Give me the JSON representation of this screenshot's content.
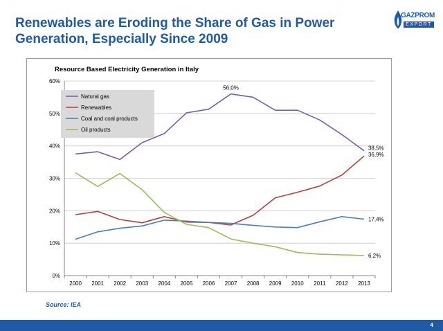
{
  "slide": {
    "title": "Renewables are Eroding the Share of Gas in Power Generation, Especially Since 2009",
    "source": "Source: IEA",
    "page_number": "4",
    "logo_brand": "GAZPROM",
    "logo_sub": "EXPORT"
  },
  "colors": {
    "title": "#1f5aa6",
    "natural_gas": "#7b5ea7",
    "renewables": "#b8403a",
    "coal": "#4a7eb5",
    "oil": "#9bbb59"
  },
  "chart_data": {
    "type": "line",
    "title": "Resource Based Electricity Generation in Italy",
    "xlabel": "",
    "ylabel": "",
    "ylim": [
      0,
      60
    ],
    "y_ticks": [
      "0%",
      "10%",
      "20%",
      "30%",
      "40%",
      "50%",
      "60%"
    ],
    "y_tick_values": [
      0,
      10,
      20,
      30,
      40,
      50,
      60
    ],
    "grid": true,
    "legend_position": "top-left",
    "x": [
      "2000",
      "2001",
      "2002",
      "2003",
      "2004",
      "2005",
      "2006",
      "2007",
      "2008",
      "2009",
      "2010",
      "2011",
      "2012",
      "2013"
    ],
    "series": [
      {
        "key": "natural_gas",
        "name": "Natural gas",
        "color": "#7b5ea7",
        "values": [
          37.5,
          38.2,
          35.8,
          41.0,
          43.8,
          50.2,
          51.3,
          56.0,
          55.0,
          51.0,
          51.0,
          48.0,
          43.5,
          38.5
        ]
      },
      {
        "key": "renewables",
        "name": "Renewables",
        "color": "#b8403a",
        "values": [
          18.8,
          19.8,
          17.3,
          16.3,
          18.2,
          16.5,
          16.4,
          15.6,
          18.6,
          24.0,
          25.7,
          27.6,
          31.0,
          36.9
        ]
      },
      {
        "key": "coal",
        "name": "Coal and coal products",
        "color": "#4a7eb5",
        "values": [
          11.2,
          13.5,
          14.6,
          15.3,
          17.1,
          16.8,
          16.4,
          16.1,
          15.5,
          15.0,
          14.8,
          16.6,
          18.2,
          17.4
        ]
      },
      {
        "key": "oil",
        "name": "Oil products",
        "color": "#9bbb59",
        "values": [
          31.7,
          27.5,
          31.5,
          26.5,
          19.5,
          15.8,
          14.8,
          11.3,
          10.0,
          8.9,
          7.1,
          6.6,
          6.4,
          6.2
        ]
      }
    ],
    "annotations": [
      {
        "series": "natural_gas",
        "x": "2007",
        "text": "56,0%"
      },
      {
        "series": "natural_gas",
        "x": "2013",
        "text": "38,5%"
      },
      {
        "series": "renewables",
        "x": "2013",
        "text": "36,9%"
      },
      {
        "series": "coal",
        "x": "2013",
        "text": "17,4%"
      },
      {
        "series": "oil",
        "x": "2013",
        "text": "6,2%"
      }
    ]
  }
}
